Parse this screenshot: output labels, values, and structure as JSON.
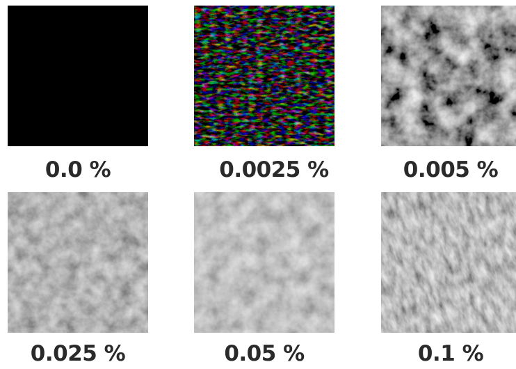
{
  "tiles": [
    {
      "label": "0.0 %",
      "texture": "solid-black"
    },
    {
      "label": "0.0025 %",
      "texture": "sparse-bright-speckles-on-black"
    },
    {
      "label": "0.005 %",
      "texture": "dark-mottled-noise"
    },
    {
      "label": "0.025 %",
      "texture": "gray-mottled-noise"
    },
    {
      "label": "0.05 %",
      "texture": "light-gray-mottled-noise"
    },
    {
      "label": "0.1 %",
      "texture": "gray-streaked-noise"
    }
  ]
}
